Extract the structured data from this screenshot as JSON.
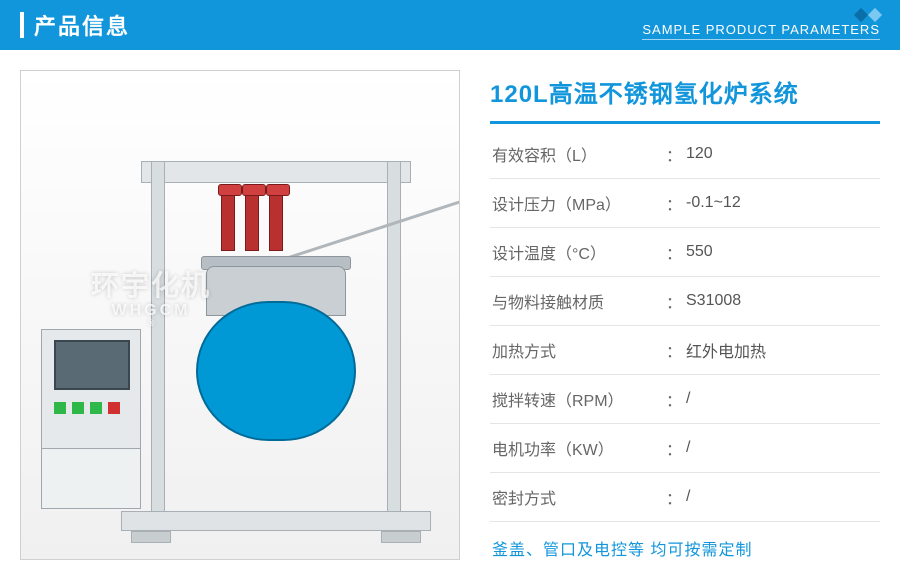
{
  "header": {
    "title": "产品信息",
    "subtitle": "SAMPLE PRODUCT PARAMETERS"
  },
  "product": {
    "title": "120L高温不锈钢氢化炉系统",
    "watermark_cn": "环宇化机",
    "watermark_en": "WHGCM"
  },
  "specs": [
    {
      "label": "有效容积（L）",
      "value": "120"
    },
    {
      "label": "设计压力（MPa）",
      "value": "-0.1~12"
    },
    {
      "label": "设计温度（°C）",
      "value": "550"
    },
    {
      "label": "与物料接触材质",
      "value": "S31008"
    },
    {
      "label": "加热方式",
      "value": "红外电加热"
    },
    {
      "label": "搅拌转速（RPM）",
      "value": "/"
    },
    {
      "label": "电机功率（KW）",
      "value": "/"
    },
    {
      "label": "密封方式",
      "value": "/"
    }
  ],
  "note": "釜盖、管口及电控等 均可按需定制",
  "colors": {
    "primary": "#1296db",
    "text_gray": "#666666",
    "border": "#e5e5e5",
    "vessel": "#0099d6",
    "valve": "#b83030"
  }
}
